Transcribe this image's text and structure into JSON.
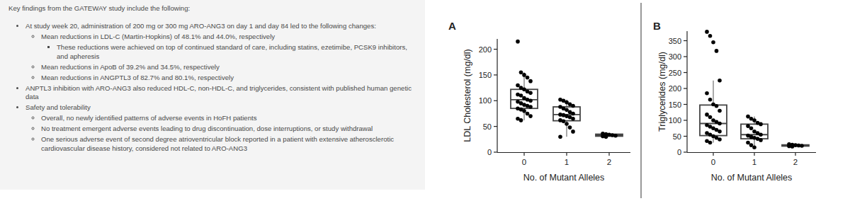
{
  "text_panel": {
    "title": "Key findings from the GATEWAY study include the following:",
    "items": [
      {
        "level": 0,
        "text": "At study week 20, administration of 200 mg or 300 mg ARO-ANG3 on day 1 and day 84 led to the following changes:"
      },
      {
        "level": 1,
        "text": "Mean reductions in LDL-C (Martin-Hopkins) of 48.1% and 44.0%, respectively"
      },
      {
        "level": 2,
        "text": "These reductions were achieved on top of continued standard of care, including statins, ezetimibe, PCSK9 inhibitors, and apheresis"
      },
      {
        "level": 1,
        "text": "Mean reductions in ApoB of 39.2% and 34.5%, respectively"
      },
      {
        "level": 1,
        "text": "Mean reductions in ANGPTL3 of 82.7% and 80.1%, respectively"
      },
      {
        "level": 0,
        "text": "ANPTL3 inhibition with ARO-ANG3 also reduced HDL-C, non-HDL-C, and triglycerides, consistent with published human genetic data"
      },
      {
        "level": 0,
        "text": "Safety and tolerability"
      },
      {
        "level": 1,
        "text": "Overall, no newly identified patterns of adverse events in HoFH patients"
      },
      {
        "level": 1,
        "text": "No treatment emergent adverse events leading to drug discontinuation, dose interruptions, or study withdrawal"
      },
      {
        "level": 1,
        "text": "One serious adverse event of second degree atrioventricular block reported in a patient with extensive atherosclerotic cardiovascular disease history, considered not related to ARO-ANG3"
      }
    ]
  },
  "chart_data": [
    {
      "type": "box",
      "title": "A",
      "x_label": "No. of Mutant Alleles",
      "y_label": "LDL Cholesterol (mg/dl)",
      "categories": [
        "0",
        "1",
        "2"
      ],
      "boxes": [
        {
          "whisker_low": 62,
          "q1": 85,
          "median": 102,
          "q3": 122,
          "whisker_high": 155
        },
        {
          "whisker_low": 30,
          "q1": 61,
          "median": 73,
          "q3": 88,
          "whisker_high": 102
        },
        {
          "whisker_low": 30,
          "q1": 31,
          "median": 33,
          "q3": 35,
          "whisker_high": 36
        }
      ],
      "points": [
        [
          215,
          155,
          150,
          145,
          138,
          130,
          125,
          122,
          118,
          115,
          112,
          110,
          105,
          102,
          100,
          98,
          95,
          92,
          90,
          88,
          85,
          83,
          80,
          75,
          70,
          65,
          62
        ],
        [
          102,
          100,
          97,
          93,
          90,
          88,
          85,
          82,
          78,
          75,
          73,
          72,
          70,
          68,
          65,
          62,
          60,
          55,
          48,
          40,
          30
        ],
        [
          36,
          35,
          34,
          33,
          32,
          31,
          30
        ]
      ],
      "color": "#000000",
      "ylim": [
        0,
        220
      ],
      "yticks": [
        0,
        50,
        100,
        150,
        200
      ],
      "grid": false
    },
    {
      "type": "box",
      "title": "B",
      "x_label": "No. of Mutant Alleles",
      "y_label": "Triglycerides (mg/dl)",
      "categories": [
        "0",
        "1",
        "2"
      ],
      "boxes": [
        {
          "whisker_low": 30,
          "q1": 52,
          "median": 90,
          "q3": 148,
          "whisker_high": 225
        },
        {
          "whisker_low": 15,
          "q1": 42,
          "median": 55,
          "q3": 88,
          "whisker_high": 112
        },
        {
          "whisker_low": 18,
          "q1": 19,
          "median": 21,
          "q3": 23,
          "whisker_high": 25
        }
      ],
      "points": [
        [
          378,
          365,
          345,
          318,
          225,
          185,
          165,
          150,
          145,
          130,
          118,
          110,
          100,
          95,
          90,
          85,
          80,
          75,
          70,
          65,
          60,
          55,
          50,
          45,
          40,
          35,
          30
        ],
        [
          112,
          105,
          100,
          92,
          88,
          82,
          75,
          65,
          60,
          55,
          52,
          48,
          45,
          42,
          38,
          30,
          22,
          15
        ],
        [
          25,
          23,
          22,
          21,
          20,
          19,
          18
        ]
      ],
      "color": "#000000",
      "ylim": [
        0,
        380
      ],
      "yticks": [
        0,
        50,
        100,
        150,
        200,
        250,
        300,
        350
      ],
      "grid": false
    }
  ]
}
